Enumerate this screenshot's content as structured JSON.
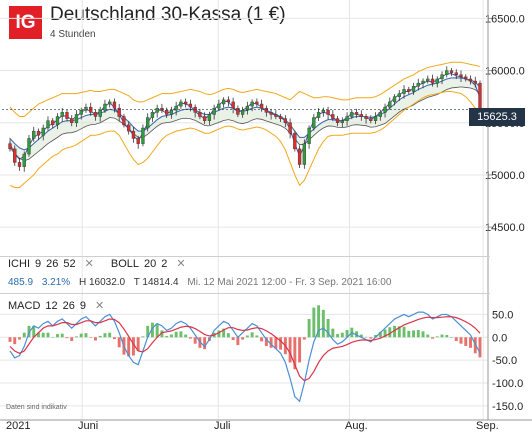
{
  "header": {
    "logo_text": "IG",
    "title": "Deutschland 30-Kassa (1 €)",
    "timeframe": "4 Stunden"
  },
  "indicators": {
    "ichi": {
      "name": "ICHI",
      "p1": "9",
      "p2": "26",
      "p3": "52"
    },
    "boll": {
      "name": "BOLL",
      "p1": "20",
      "p2": "2"
    },
    "macd": {
      "name": "MACD",
      "p1": "12",
      "p2": "26",
      "p3": "9"
    }
  },
  "info": {
    "change": "485.9",
    "change_pct": "3.21%",
    "high": "H 16032.0",
    "low": "T 14814.4",
    "range": "Mi. 12 Mai 2021 12:00 - Fr. 3 Sep. 2021 16:00"
  },
  "current_price": "15625.3",
  "footer_note": "Daten sind indikativ",
  "colors": {
    "brand": "#e21f26",
    "candle_up": "#2e9e3a",
    "candle_down": "#d63030",
    "bollinger": "#f0a81c",
    "tenkan": "#5b4fa0",
    "kijun": "#3f6fb8",
    "cloud_line": "#555555",
    "macd_line": "#4a8fd6",
    "signal_line": "#d9344a",
    "hist_up": "#6cbf6a",
    "hist_down": "#e8706a",
    "price_tag": "#243447"
  },
  "chart_data": [
    {
      "type": "line",
      "title": "Deutschland 30-Kassa (1 €)",
      "subtitle": "4 Stunden",
      "x_ticks": [
        "2021",
        "Juni",
        "Juli",
        "Aug.",
        "Sep."
      ],
      "ylim": [
        14300,
        16600
      ],
      "y_ticks": [
        14500.0,
        15000.0,
        15500.0,
        16000.0,
        16500.0
      ],
      "grid": true,
      "close": [
        15250,
        15120,
        15080,
        15200,
        15350,
        15420,
        15380,
        15450,
        15520,
        15480,
        15560,
        15600,
        15540,
        15500,
        15580,
        15620,
        15650,
        15600,
        15560,
        15620,
        15680,
        15700,
        15640,
        15560,
        15480,
        15420,
        15350,
        15300,
        15450,
        15550,
        15600,
        15640,
        15620,
        15580,
        15620,
        15660,
        15700,
        15680,
        15650,
        15600,
        15560,
        15520,
        15580,
        15640,
        15680,
        15720,
        15700,
        15640,
        15580,
        15620,
        15660,
        15700,
        15680,
        15640,
        15600,
        15580,
        15560,
        15540,
        15500,
        15400,
        15250,
        15100,
        15300,
        15450,
        15550,
        15600,
        15620,
        15580,
        15540,
        15500,
        15520,
        15560,
        15600,
        15580,
        15560,
        15540,
        15520,
        15560,
        15600,
        15650,
        15700,
        15750,
        15780,
        15820,
        15800,
        15850,
        15880,
        15900,
        15920,
        15880,
        15920,
        15960,
        16000,
        15980,
        15960,
        15940,
        15920,
        15900,
        15880,
        15625
      ],
      "series": [
        {
          "name": "Bollinger Upper",
          "values": [
            15650,
            15600,
            15560,
            15560,
            15600,
            15640,
            15680,
            15700,
            15720,
            15740,
            15760,
            15780,
            15780,
            15780,
            15780,
            15790,
            15800,
            15810,
            15800,
            15800,
            15810,
            15820,
            15820,
            15800,
            15780,
            15760,
            15720,
            15700,
            15700,
            15720,
            15740,
            15760,
            15780,
            15780,
            15780,
            15790,
            15800,
            15810,
            15820,
            15810,
            15800,
            15780,
            15770,
            15780,
            15800,
            15820,
            15830,
            15820,
            15800,
            15790,
            15800,
            15810,
            15820,
            15810,
            15800,
            15790,
            15780,
            15760,
            15740,
            15720,
            15760,
            15800,
            15780,
            15760,
            15740,
            15740,
            15750,
            15750,
            15740,
            15730,
            15720,
            15720,
            15730,
            15740,
            15740,
            15740,
            15740,
            15750,
            15770,
            15800,
            15830,
            15860,
            15890,
            15920,
            15940,
            15960,
            15990,
            16010,
            16030,
            16040,
            16050,
            16060,
            16070,
            16080,
            16080,
            16080,
            16070,
            16060,
            16050,
            16040
          ]
        },
        {
          "name": "Bollinger Lower",
          "values": [
            14900,
            14880,
            14880,
            14920,
            14960,
            15000,
            15060,
            15100,
            15140,
            15180,
            15200,
            15240,
            15260,
            15270,
            15290,
            15320,
            15350,
            15380,
            15380,
            15390,
            15410,
            15420,
            15420,
            15380,
            15300,
            15220,
            15150,
            15100,
            15120,
            15160,
            15220,
            15280,
            15340,
            15380,
            15400,
            15420,
            15430,
            15440,
            15450,
            15440,
            15420,
            15400,
            15400,
            15420,
            15440,
            15460,
            15470,
            15460,
            15440,
            15430,
            15440,
            15450,
            15460,
            15450,
            15430,
            15400,
            15370,
            15320,
            15240,
            15120,
            15000,
            14900,
            14950,
            15050,
            15150,
            15250,
            15320,
            15370,
            15380,
            15380,
            15380,
            15390,
            15400,
            15400,
            15400,
            15400,
            15400,
            15410,
            15430,
            15460,
            15500,
            15540,
            15580,
            15620,
            15650,
            15680,
            15710,
            15740,
            15760,
            15770,
            15780,
            15790,
            15800,
            15800,
            15790,
            15780,
            15750,
            15700,
            15640,
            15580
          ]
        },
        {
          "name": "Tenkan-sen",
          "values": [
            15300,
            15200,
            15150,
            15180,
            15280,
            15360,
            15390,
            15420,
            15470,
            15490,
            15530,
            15570,
            15560,
            15530,
            15560,
            15600,
            15630,
            15610,
            15580,
            15610,
            15660,
            15690,
            15650,
            15580,
            15500,
            15440,
            15380,
            15330,
            15400,
            15500,
            15570,
            15620,
            15620,
            15590,
            15610,
            15650,
            15690,
            15680,
            15660,
            15610,
            15570,
            15540,
            15570,
            15630,
            15670,
            15710,
            15700,
            15650,
            15600,
            15620,
            15650,
            15690,
            15680,
            15650,
            15610,
            15590,
            15570,
            15550,
            15520,
            15440,
            15300,
            15180,
            15280,
            15420,
            15520,
            15580,
            15600,
            15590,
            15550,
            15520,
            15520,
            15550,
            15590,
            15580,
            15570,
            15550,
            15530,
            15560,
            15600,
            15640,
            15690,
            15740,
            15770,
            15800,
            15800,
            15830,
            15860,
            15880,
            15900,
            15890,
            15910,
            15940,
            15970,
            15970,
            15950,
            15940,
            15920,
            15900,
            15860,
            15740
          ]
        },
        {
          "name": "Kijun-sen",
          "values": [
            15350,
            15300,
            15260,
            15240,
            15260,
            15300,
            15340,
            15380,
            15420,
            15450,
            15480,
            15510,
            15520,
            15520,
            15530,
            15550,
            15570,
            15580,
            15580,
            15590,
            15610,
            15630,
            15620,
            15590,
            15550,
            15510,
            15460,
            15420,
            15420,
            15450,
            15490,
            15530,
            15560,
            15570,
            15580,
            15600,
            15620,
            15630,
            15630,
            15620,
            15600,
            15580,
            15580,
            15600,
            15620,
            15640,
            15650,
            15640,
            15620,
            15610,
            15620,
            15640,
            15650,
            15640,
            15620,
            15600,
            15580,
            15560,
            15530,
            15480,
            15420,
            15360,
            15360,
            15400,
            15440,
            15480,
            15510,
            15530,
            15530,
            15520,
            15520,
            15530,
            15550,
            15560,
            15560,
            15560,
            15550,
            15560,
            15580,
            15600,
            15640,
            15680,
            15720,
            15750,
            15770,
            15790,
            15820,
            15840,
            15860,
            15870,
            15880,
            15900,
            15920,
            15930,
            15930,
            15930,
            15920,
            15910,
            15890,
            15840
          ]
        }
      ]
    },
    {
      "type": "line",
      "title": "MACD 12 26 9",
      "ylim": [
        -170,
        75
      ],
      "y_ticks": [
        50.0,
        0.0,
        -50.0,
        -100.0,
        -150.0
      ],
      "grid": true,
      "series": [
        {
          "name": "MACD",
          "values": [
            -30,
            -45,
            -40,
            -20,
            10,
            25,
            20,
            30,
            35,
            25,
            35,
            40,
            30,
            20,
            30,
            40,
            45,
            35,
            25,
            35,
            45,
            50,
            35,
            10,
            -20,
            -40,
            -55,
            -60,
            -30,
            0,
            20,
            30,
            25,
            15,
            20,
            30,
            35,
            30,
            20,
            5,
            -10,
            -20,
            -5,
            15,
            25,
            35,
            30,
            15,
            0,
            10,
            20,
            30,
            25,
            10,
            -5,
            -15,
            -25,
            -35,
            -55,
            -90,
            -130,
            -140,
            -100,
            -50,
            -10,
            15,
            20,
            10,
            -5,
            -15,
            -10,
            0,
            10,
            5,
            0,
            -5,
            -10,
            0,
            10,
            20,
            30,
            40,
            45,
            50,
            45,
            50,
            55,
            55,
            50,
            40,
            45,
            50,
            50,
            45,
            35,
            25,
            15,
            5,
            -15,
            -35
          ]
        },
        {
          "name": "Signal",
          "values": [
            -20,
            -30,
            -35,
            -30,
            -15,
            0,
            10,
            20,
            25,
            25,
            28,
            32,
            32,
            28,
            28,
            32,
            36,
            36,
            32,
            32,
            36,
            40,
            39,
            32,
            18,
            2,
            -15,
            -30,
            -32,
            -25,
            -12,
            0,
            10,
            12,
            14,
            18,
            22,
            24,
            23,
            19,
            13,
            6,
            3,
            5,
            10,
            16,
            21,
            21,
            17,
            15,
            16,
            19,
            21,
            19,
            14,
            8,
            0,
            -8,
            -18,
            -35,
            -60,
            -85,
            -95,
            -90,
            -75,
            -55,
            -40,
            -30,
            -24,
            -22,
            -20,
            -16,
            -11,
            -8,
            -6,
            -6,
            -7,
            -5,
            -2,
            3,
            8,
            15,
            21,
            27,
            31,
            35,
            39,
            42,
            44,
            43,
            43,
            44,
            45,
            45,
            43,
            39,
            34,
            28,
            20,
            9
          ]
        }
      ]
    }
  ]
}
